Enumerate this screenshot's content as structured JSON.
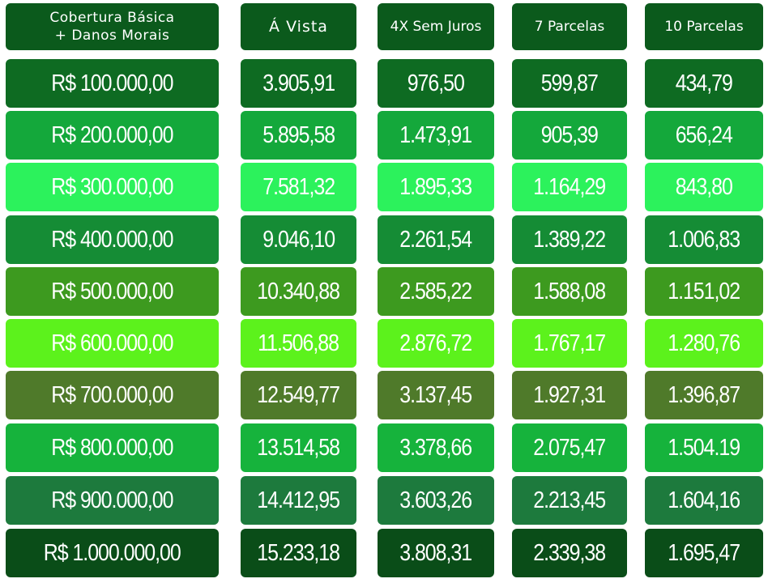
{
  "header": {
    "coverage_line1": "Cobertura Básica",
    "coverage_line2": "+ Danos Morais",
    "col_avista": "Á Vista",
    "col_4x": "4X Sem Juros",
    "col_7": "7 Parcelas",
    "col_10": "10 Parcelas",
    "color": "#0b5a1c"
  },
  "rows": [
    {
      "coverage": "R$ 100.000,00",
      "avista": "3.905,91",
      "x4": "976,50",
      "p7": "599,87",
      "p10": "434,79",
      "color": "#0e6b22"
    },
    {
      "coverage": "R$ 200.000,00",
      "avista": "5.895,58",
      "x4": "1.473,91",
      "p7": "905,39",
      "p10": "656,24",
      "color": "#14a83b"
    },
    {
      "coverage": "R$ 300.000,00",
      "avista": "7.581,32",
      "x4": "1.895,33",
      "p7": "1.164,29",
      "p10": "843,80",
      "color": "#2cf25c"
    },
    {
      "coverage": "R$ 400.000,00",
      "avista": "9.046,10",
      "x4": "2.261,54",
      "p7": "1.389,22",
      "p10": "1.006,83",
      "color": "#158c35"
    },
    {
      "coverage": "R$ 500.000,00",
      "avista": "10.340,88",
      "x4": "2.585,22",
      "p7": "1.588,08",
      "p10": "1.151,02",
      "color": "#3d9a1f"
    },
    {
      "coverage": "R$ 600.000,00",
      "avista": "11.506,88",
      "x4": "2.876,72",
      "p7": "1.767,17",
      "p10": "1.280,76",
      "color": "#5cf21c"
    },
    {
      "coverage": "R$ 700.000,00",
      "avista": "12.549,77",
      "x4": "3.137,45",
      "p7": "1.927,31",
      "p10": "1.396,87",
      "color": "#4f7a2a"
    },
    {
      "coverage": "R$ 800.000,00",
      "avista": "13.514,58",
      "x4": "3.378,66",
      "p7": "2.075,47",
      "p10": "1.504.19",
      "color": "#16b33c"
    },
    {
      "coverage": "R$ 900.000,00",
      "avista": "14.412,95",
      "x4": "3.603,26",
      "p7": "2.213,45",
      "p10": "1.604,16",
      "color": "#1d7a3d"
    },
    {
      "coverage": "R$ 1.000.000,00",
      "avista": "15.233,18",
      "x4": "3.808,31",
      "p7": "2.339,38",
      "p10": "1.695,47",
      "color": "#0a4d18"
    }
  ]
}
